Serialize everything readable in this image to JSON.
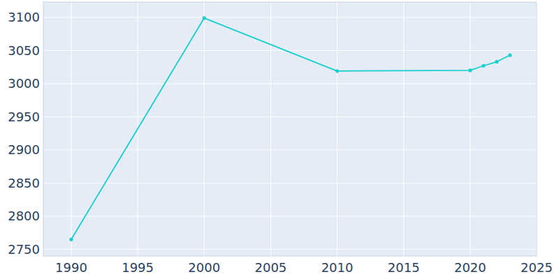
{
  "chart_data": {
    "type": "line",
    "x": [
      1990,
      2000,
      2010,
      2020,
      2021,
      2022,
      2023
    ],
    "values": [
      2765,
      3099,
      3019,
      3020,
      3027,
      3033,
      3043
    ],
    "color": "#17cfcf",
    "marker": "circle",
    "xlim": [
      1987.9,
      2025
    ],
    "xticks": [
      1990,
      1995,
      2000,
      2005,
      2010,
      2015,
      2020,
      2025
    ],
    "ylim": [
      2740,
      3123
    ],
    "yticks": [
      2750,
      2800,
      2850,
      2900,
      2950,
      3000,
      3050,
      3100
    ],
    "grid": true
  }
}
